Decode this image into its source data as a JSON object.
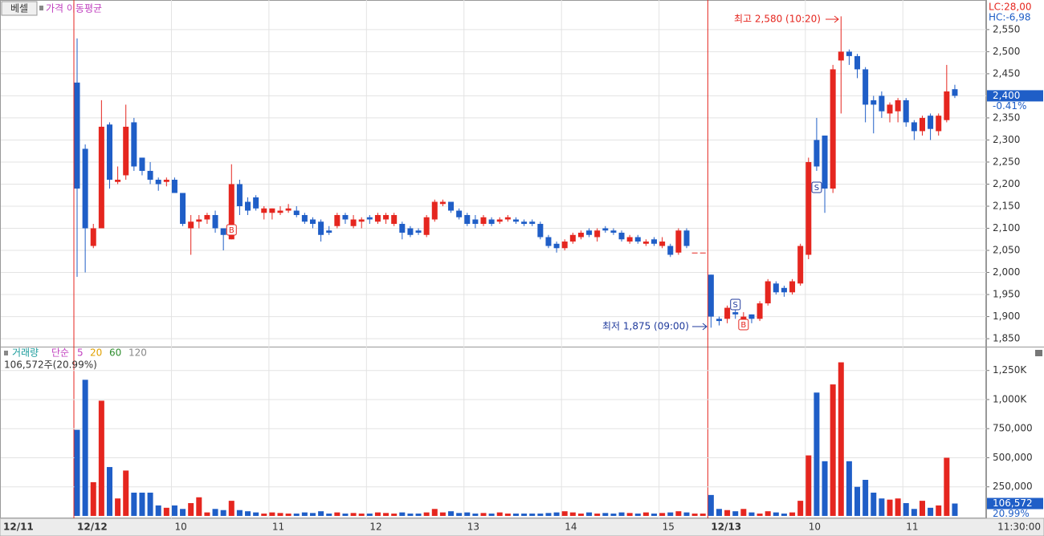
{
  "header": {
    "button": "베셀",
    "indicator": "가격 이동평균",
    "lc": "LC:28,00",
    "hc": "HC:-6,98"
  },
  "chart_data": [
    {
      "type": "candlestick",
      "prev_label": "12/11",
      "time_label": "11:30:00",
      "categories": [
        "12/12",
        null,
        null,
        null,
        null,
        null,
        null,
        null,
        null,
        null,
        null,
        null,
        "10",
        null,
        null,
        null,
        null,
        null,
        null,
        null,
        null,
        null,
        null,
        null,
        "11",
        null,
        null,
        null,
        null,
        null,
        null,
        null,
        null,
        null,
        null,
        null,
        "12",
        null,
        null,
        null,
        null,
        null,
        null,
        null,
        null,
        null,
        null,
        null,
        "13",
        null,
        null,
        null,
        null,
        null,
        null,
        null,
        null,
        null,
        null,
        null,
        "14",
        null,
        null,
        null,
        null,
        null,
        null,
        null,
        null,
        null,
        null,
        null,
        "15",
        null,
        null,
        null,
        null,
        null,
        "12/13",
        null,
        null,
        null,
        null,
        null,
        null,
        null,
        null,
        null,
        null,
        null,
        "10",
        null,
        null,
        null,
        null,
        null,
        null,
        null,
        null,
        null,
        null,
        null,
        "11",
        null,
        null,
        null,
        null,
        null,
        null
      ],
      "open": [
        2430,
        2280,
        2060,
        2100,
        2335,
        2205,
        2220,
        2340,
        2260,
        2230,
        2210,
        2205,
        2210,
        2180,
        2100,
        2115,
        2120,
        2130,
        2100,
        2075,
        2200,
        2160,
        2170,
        2135,
        2135,
        2135,
        2140,
        2140,
        2130,
        2120,
        2115,
        2095,
        2105,
        2130,
        2105,
        2115,
        2125,
        2115,
        2120,
        2110,
        2110,
        2100,
        2095,
        2085,
        2120,
        2155,
        2160,
        2140,
        2130,
        2120,
        2110,
        2120,
        2115,
        2120,
        2120,
        2115,
        2115,
        2110,
        2080,
        2065,
        2055,
        2070,
        2080,
        2095,
        2080,
        2100,
        2095,
        2090,
        2070,
        2080,
        2065,
        2075,
        2060,
        2060,
        2045,
        2095,
        2045,
        2045,
        1995,
        1895,
        1895,
        1910,
        1890,
        1905,
        1895,
        1930,
        1975,
        1965,
        1955,
        1975,
        2040,
        2300,
        2310,
        2190,
        2480,
        2500,
        2490,
        2460,
        2390,
        2400,
        2360,
        2365,
        2390,
        2340,
        2320,
        2355,
        2320,
        2345,
        2415
      ],
      "high": [
        2530,
        2290,
        2110,
        2390,
        2340,
        2240,
        2380,
        2350,
        2260,
        2250,
        2215,
        2215,
        2215,
        2180,
        2130,
        2130,
        2135,
        2140,
        2100,
        2245,
        2210,
        2170,
        2175,
        2150,
        2145,
        2150,
        2155,
        2150,
        2135,
        2125,
        2120,
        2105,
        2135,
        2135,
        2130,
        2125,
        2130,
        2135,
        2135,
        2135,
        2115,
        2105,
        2100,
        2130,
        2165,
        2165,
        2160,
        2145,
        2135,
        2130,
        2130,
        2125,
        2125,
        2130,
        2125,
        2120,
        2120,
        2115,
        2085,
        2070,
        2075,
        2090,
        2095,
        2100,
        2100,
        2105,
        2100,
        2095,
        2085,
        2085,
        2075,
        2080,
        2080,
        2065,
        2100,
        2100,
        2045,
        2045,
        1995,
        1900,
        1925,
        1920,
        1910,
        1905,
        1935,
        1985,
        1980,
        1970,
        1985,
        2065,
        2260,
        2350,
        2310,
        2470,
        2580,
        2505,
        2495,
        2465,
        2400,
        2410,
        2385,
        2395,
        2395,
        2345,
        2355,
        2360,
        2360,
        2470,
        2425
      ],
      "low": [
        1990,
        2000,
        2055,
        2100,
        2190,
        2200,
        2210,
        2230,
        2220,
        2200,
        2185,
        2195,
        2180,
        2105,
        2040,
        2100,
        2110,
        2090,
        2050,
        2075,
        2130,
        2130,
        2140,
        2120,
        2120,
        2130,
        2135,
        2125,
        2110,
        2100,
        2070,
        2085,
        2100,
        2110,
        2100,
        2100,
        2110,
        2110,
        2110,
        2105,
        2075,
        2080,
        2085,
        2080,
        2115,
        2150,
        2135,
        2120,
        2105,
        2100,
        2105,
        2105,
        2110,
        2115,
        2110,
        2105,
        2105,
        2075,
        2055,
        2045,
        2050,
        2065,
        2075,
        2080,
        2070,
        2090,
        2085,
        2070,
        2065,
        2065,
        2060,
        2060,
        2055,
        2035,
        2040,
        2055,
        2045,
        2045,
        1875,
        1880,
        1885,
        1895,
        1880,
        1885,
        1890,
        1925,
        1950,
        1945,
        1950,
        1970,
        2030,
        2230,
        2135,
        2180,
        2360,
        2470,
        2440,
        2340,
        2315,
        2350,
        2340,
        2340,
        2330,
        2300,
        2310,
        2300,
        2310,
        2340,
        2395
      ],
      "close": [
        2190,
        2100,
        2100,
        2330,
        2210,
        2210,
        2330,
        2240,
        2230,
        2210,
        2200,
        2210,
        2180,
        2110,
        2115,
        2120,
        2130,
        2100,
        2085,
        2200,
        2150,
        2140,
        2145,
        2145,
        2145,
        2140,
        2145,
        2130,
        2115,
        2110,
        2085,
        2090,
        2130,
        2120,
        2120,
        2120,
        2120,
        2130,
        2130,
        2130,
        2090,
        2085,
        2090,
        2125,
        2160,
        2160,
        2140,
        2125,
        2110,
        2110,
        2125,
        2110,
        2120,
        2125,
        2115,
        2110,
        2110,
        2080,
        2060,
        2055,
        2070,
        2085,
        2090,
        2085,
        2095,
        2095,
        2090,
        2075,
        2080,
        2070,
        2070,
        2065,
        2070,
        2040,
        2095,
        2060,
        2045,
        2045,
        1900,
        1890,
        1920,
        1905,
        1900,
        1895,
        1930,
        1980,
        1955,
        1955,
        1980,
        2060,
        2250,
        2240,
        2190,
        2460,
        2500,
        2490,
        2460,
        2380,
        2380,
        2365,
        2380,
        2390,
        2340,
        2320,
        2350,
        2325,
        2355,
        2410,
        2400
      ],
      "up_color": "#e5261f",
      "down_color": "#1f5ec7",
      "ylim": [
        1832,
        2617
      ],
      "yticks": [
        {
          "value": 1850,
          "label": "1,850"
        },
        {
          "value": 1900,
          "label": "1,900"
        },
        {
          "value": 1950,
          "label": "1,950"
        },
        {
          "value": 2000,
          "label": "2,000"
        },
        {
          "value": 2050,
          "label": "2,050"
        },
        {
          "value": 2100,
          "label": "2,100"
        },
        {
          "value": 2150,
          "label": "2,150"
        },
        {
          "value": 2200,
          "label": "2,200"
        },
        {
          "value": 2250,
          "label": "2,250"
        },
        {
          "value": 2300,
          "label": "2,300"
        },
        {
          "value": 2350,
          "label": "2,350"
        },
        {
          "value": 2400,
          "label": "2,400"
        },
        {
          "value": 2450,
          "label": "2,450"
        },
        {
          "value": 2500,
          "label": "2,500"
        },
        {
          "value": 2550,
          "label": "2,550"
        }
      ],
      "annotations": [
        "최고 2,580 (10:20)",
        "최저 1,875 (09:00)"
      ],
      "signals": [
        "B",
        "S",
        "S",
        "B"
      ],
      "last_label": "2,400",
      "last_change": "-0.41%",
      "grid": true
    },
    {
      "type": "bar",
      "title": "거래량",
      "legend": [
        "단순",
        "5",
        "20",
        "60",
        "120"
      ],
      "legend_colors": [
        "#c03fbf",
        "#c03fbf",
        "#e0a000",
        "#2c8c2c",
        "#888888"
      ],
      "summary": "106,572주(20.99%)",
      "values": [
        740000,
        1170000,
        290000,
        990000,
        420000,
        150000,
        390000,
        200000,
        200000,
        200000,
        90000,
        70000,
        90000,
        60000,
        110000,
        160000,
        30000,
        60000,
        50000,
        130000,
        50000,
        40000,
        30000,
        20000,
        30000,
        25000,
        20000,
        20000,
        30000,
        25000,
        40000,
        20000,
        30000,
        20000,
        25000,
        20000,
        20000,
        30000,
        25000,
        20000,
        30000,
        20000,
        20000,
        30000,
        60000,
        30000,
        40000,
        25000,
        30000,
        20000,
        25000,
        20000,
        30000,
        20000,
        20000,
        20000,
        20000,
        20000,
        25000,
        30000,
        40000,
        30000,
        20000,
        30000,
        20000,
        25000,
        20000,
        30000,
        25000,
        20000,
        30000,
        20000,
        25000,
        30000,
        40000,
        30000,
        20000,
        20000,
        180000,
        60000,
        50000,
        40000,
        60000,
        30000,
        20000,
        40000,
        30000,
        20000,
        30000,
        130000,
        520000,
        1060000,
        470000,
        1130000,
        1320000,
        470000,
        250000,
        310000,
        200000,
        150000,
        140000,
        150000,
        110000,
        60000,
        130000,
        70000,
        90000,
        500000,
        106572
      ],
      "ylim": [
        -14000,
        1441000
      ],
      "yticks": [
        {
          "value": 250000,
          "label": "250,000"
        },
        {
          "value": 500000,
          "label": "500,000"
        },
        {
          "value": 750000,
          "label": "750,000"
        },
        {
          "value": 1000000,
          "label": "1,000K"
        },
        {
          "value": 1250000,
          "label": "1,250K"
        }
      ],
      "last_label": "106,572",
      "last_pct": "20.99%"
    }
  ]
}
